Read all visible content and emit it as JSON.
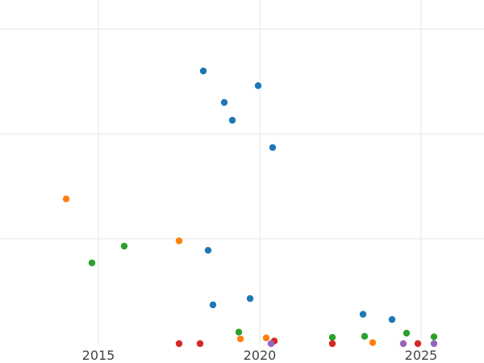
{
  "chart_data": {
    "type": "scatter",
    "title": "",
    "xlabel": "",
    "ylabel": "",
    "xlim": [
      2012.0,
      2027.0
    ],
    "ylim": [
      0,
      32.5
    ],
    "grid": true,
    "x_ticks": [
      2015,
      2020,
      2025
    ],
    "x_tick_labels": [
      "2015",
      "2020",
      "2025"
    ],
    "y_gridlines": [
      0,
      10,
      20,
      30
    ],
    "series": [
      {
        "color": "#1f77b4",
        "points": [
          {
            "x": 2018.25,
            "y": 26.0
          },
          {
            "x": 2018.9,
            "y": 23.0
          },
          {
            "x": 2019.15,
            "y": 21.3
          },
          {
            "x": 2019.95,
            "y": 24.6
          },
          {
            "x": 2020.4,
            "y": 18.7
          },
          {
            "x": 2018.4,
            "y": 8.9
          },
          {
            "x": 2018.55,
            "y": 3.7
          },
          {
            "x": 2019.7,
            "y": 4.3
          },
          {
            "x": 2023.2,
            "y": 2.8
          },
          {
            "x": 2024.1,
            "y": 2.3
          }
        ]
      },
      {
        "color": "#ff7f0e",
        "points": [
          {
            "x": 2014.0,
            "y": 13.8
          },
          {
            "x": 2017.5,
            "y": 9.8
          },
          {
            "x": 2019.4,
            "y": 0.45
          },
          {
            "x": 2020.2,
            "y": 0.55
          },
          {
            "x": 2023.5,
            "y": 0.1
          }
        ]
      },
      {
        "color": "#2ca02c",
        "points": [
          {
            "x": 2014.8,
            "y": 7.7
          },
          {
            "x": 2015.8,
            "y": 9.3
          },
          {
            "x": 2019.35,
            "y": 1.1
          },
          {
            "x": 2022.25,
            "y": 0.6
          },
          {
            "x": 2023.25,
            "y": 0.7
          },
          {
            "x": 2024.55,
            "y": 1.0
          },
          {
            "x": 2025.4,
            "y": 0.65
          }
        ]
      },
      {
        "color": "#d62728",
        "points": [
          {
            "x": 2017.5,
            "y": 0.0
          },
          {
            "x": 2018.15,
            "y": 0.0
          },
          {
            "x": 2020.45,
            "y": 0.25
          },
          {
            "x": 2022.25,
            "y": 0.0
          },
          {
            "x": 2024.9,
            "y": 0.0
          }
        ]
      },
      {
        "color": "#9467bd",
        "points": [
          {
            "x": 2020.35,
            "y": 0.0
          },
          {
            "x": 2024.45,
            "y": 0.0
          },
          {
            "x": 2025.4,
            "y": 0.0
          }
        ]
      }
    ]
  },
  "colors": {
    "grid": "#e6e6e6",
    "tick_text": "#444444",
    "background": "#ffffff"
  }
}
